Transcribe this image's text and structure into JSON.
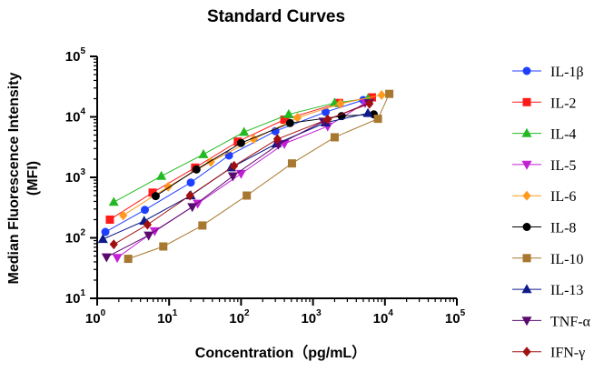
{
  "chart_data": {
    "type": "scatter",
    "title": "Standard Curves",
    "xlabel": "Concentration（pg/mL）",
    "ylabel_lines": [
      "Median Fluorescence Intensity",
      "(MFI)"
    ],
    "x_scale": "log10",
    "y_scale": "log10",
    "xlim": [
      1,
      100000
    ],
    "ylim": [
      10,
      100000
    ],
    "x_ticks": [
      {
        "base": "10",
        "exp": "0",
        "value": 1
      },
      {
        "base": "10",
        "exp": "1",
        "value": 10
      },
      {
        "base": "10",
        "exp": "2",
        "value": 100
      },
      {
        "base": "10",
        "exp": "3",
        "value": 1000
      },
      {
        "base": "10",
        "exp": "4",
        "value": 10000
      },
      {
        "base": "10",
        "exp": "5",
        "value": 100000
      }
    ],
    "y_ticks": [
      {
        "base": "10",
        "exp": "1",
        "value": 10
      },
      {
        "base": "10",
        "exp": "2",
        "value": 100
      },
      {
        "base": "10",
        "exp": "3",
        "value": 1000
      },
      {
        "base": "10",
        "exp": "4",
        "value": 10000
      },
      {
        "base": "10",
        "exp": "5",
        "value": 100000
      }
    ],
    "legend_position": "right",
    "grid": false,
    "series": [
      {
        "name": "IL-1β",
        "color": "#1f3fff",
        "marker": "circle",
        "x": [
          1.3,
          4.6,
          20,
          68,
          300,
          1500,
          5000
        ],
        "y": [
          125,
          290,
          820,
          2300,
          5800,
          12000,
          19000
        ]
      },
      {
        "name": "IL-2",
        "color": "#ff1a1a",
        "marker": "square",
        "x": [
          1.5,
          5.9,
          23,
          90,
          400,
          2300,
          6600
        ],
        "y": [
          200,
          560,
          1450,
          3900,
          9000,
          17000,
          21000
        ]
      },
      {
        "name": "IL-4",
        "color": "#22b922",
        "marker": "triangle-up",
        "x": [
          1.7,
          7.8,
          30,
          110,
          460,
          2000,
          5800
        ],
        "y": [
          390,
          1050,
          2400,
          5600,
          11000,
          17000,
          20000
        ]
      },
      {
        "name": "IL-5",
        "color": "#c21fd6",
        "marker": "triangle-down",
        "x": [
          1.9,
          6.3,
          25,
          100,
          400,
          1600,
          5300
        ],
        "y": [
          47,
          130,
          370,
          1150,
          3600,
          7000,
          17000
        ]
      },
      {
        "name": "IL-6",
        "color": "#ff9a1f",
        "marker": "diamond",
        "x": [
          2.3,
          9.7,
          38,
          150,
          610,
          2400,
          9000
        ],
        "y": [
          235,
          700,
          1800,
          4300,
          9700,
          16500,
          23000
        ]
      },
      {
        "name": "IL-8",
        "color": "#000000",
        "marker": "circle",
        "x": [
          6.5,
          24,
          100,
          480,
          2500,
          7000
        ],
        "y": [
          490,
          1350,
          3700,
          7900,
          10300,
          11000
        ]
      },
      {
        "name": "IL-10",
        "color": "#a87830",
        "marker": "square",
        "x": [
          2.7,
          8.3,
          29,
          120,
          510,
          2000,
          8000,
          11500
        ],
        "y": [
          45,
          72,
          160,
          500,
          1700,
          4600,
          9300,
          24000
        ]
      },
      {
        "name": "IL-13",
        "color": "#0d1b8a",
        "marker": "triangle-up",
        "x": [
          1.2,
          4.5,
          20,
          73,
          310,
          1500,
          5800
        ],
        "y": [
          95,
          190,
          500,
          1450,
          3600,
          8000,
          11500
        ]
      },
      {
        "name": "TNF-α",
        "color": "#5a0a6e",
        "marker": "triangle-down",
        "x": [
          1.35,
          5.2,
          21,
          77,
          330,
          1400,
          6000
        ],
        "y": [
          48,
          110,
          325,
          1050,
          3500,
          8400,
          17000
        ]
      },
      {
        "name": "IFN-γ",
        "color": "#a11010",
        "marker": "diamond",
        "x": [
          1.7,
          5.0,
          19.5,
          80,
          320,
          1600,
          6100
        ],
        "y": [
          78,
          165,
          500,
          1550,
          4300,
          9100,
          16500
        ]
      }
    ]
  }
}
